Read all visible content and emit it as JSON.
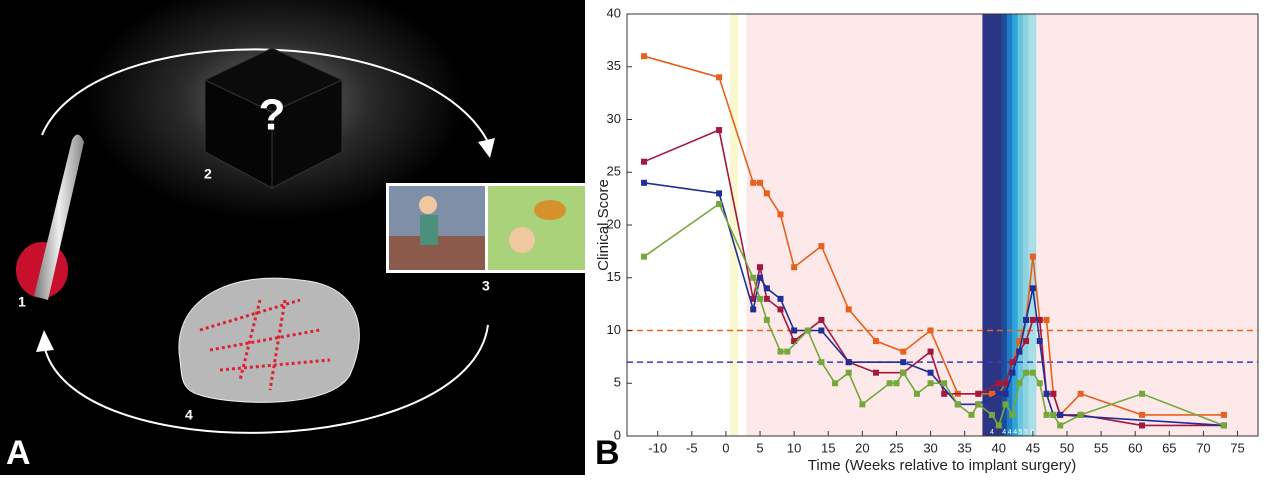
{
  "panel_a": {
    "label": "A",
    "steps": [
      "1",
      "2",
      "3",
      "4"
    ],
    "cube_mark": "?"
  },
  "chart_data": {
    "type": "line",
    "panel_label": "B",
    "xlabel": "Time (Weeks relative to implant surgery)",
    "ylabel": "Clinical Score",
    "xlim": [
      -14.5,
      78
    ],
    "ylim": [
      0,
      40
    ],
    "xticks": [
      -10,
      -5,
      0,
      5,
      10,
      15,
      20,
      25,
      30,
      35,
      40,
      45,
      50,
      55,
      60,
      65,
      70,
      75
    ],
    "yticks": [
      0,
      5,
      10,
      15,
      20,
      25,
      30,
      35,
      40
    ],
    "spans": [
      {
        "from": 0.6,
        "to": 1.8,
        "color": "#fbf7cf"
      },
      {
        "from": 3,
        "to": 78,
        "color": "#fde9ea"
      }
    ],
    "bands": [
      {
        "from": 37.6,
        "to": 40.4,
        "color": "#2b3584",
        "label": "4"
      },
      {
        "from": 40.4,
        "to": 41.2,
        "color": "#1c4d9c",
        "label": "4"
      },
      {
        "from": 41.2,
        "to": 42.0,
        "color": "#1f7cc6",
        "label": "4"
      },
      {
        "from": 42.0,
        "to": 42.8,
        "color": "#2ba5da",
        "label": "4"
      },
      {
        "from": 42.8,
        "to": 43.6,
        "color": "#68c5db",
        "label": "5"
      },
      {
        "from": 43.6,
        "to": 44.4,
        "color": "#8cd3df",
        "label": "5"
      },
      {
        "from": 44.4,
        "to": 45.5,
        "color": "#a8dfe6",
        "label": "6"
      }
    ],
    "hlines": [
      {
        "value": 10,
        "color": "#e8601c"
      },
      {
        "value": 7,
        "color": "#3a3ac0"
      }
    ],
    "series": [
      {
        "color": "#e8601c",
        "x": [
          -12,
          -1,
          4,
          5,
          6,
          8,
          10,
          14,
          18,
          22,
          26,
          30,
          34,
          37,
          39,
          40,
          41,
          42,
          43,
          44,
          45,
          46,
          47,
          48,
          49,
          52,
          61,
          73
        ],
        "values": [
          36,
          34,
          24,
          24,
          23,
          21,
          16,
          18,
          12,
          9,
          8,
          10,
          4,
          4,
          4,
          4,
          5,
          7,
          9,
          11,
          17,
          11,
          11,
          4,
          2,
          4,
          2,
          2
        ]
      },
      {
        "color": "#a3183d",
        "x": [
          -12,
          -1,
          4,
          5,
          6,
          8,
          10,
          14,
          18,
          22,
          26,
          30,
          32,
          37,
          40,
          41,
          42,
          43,
          44,
          45,
          46,
          47,
          48,
          49,
          52,
          61,
          73
        ],
        "values": [
          26,
          29,
          13,
          16,
          13,
          12,
          9,
          11,
          7,
          6,
          6,
          8,
          4,
          4,
          5,
          5,
          7,
          8,
          9,
          11,
          11,
          4,
          4,
          2,
          2,
          1,
          1
        ]
      },
      {
        "color": "#1f2f96",
        "x": [
          -12,
          -1,
          4,
          5,
          6,
          8,
          10,
          14,
          18,
          26,
          30,
          34,
          37,
          40,
          41,
          42,
          43,
          44,
          45,
          46,
          47,
          48,
          49,
          73
        ],
        "values": [
          24,
          23,
          12,
          15,
          14,
          13,
          10,
          10,
          7,
          7,
          6,
          3,
          3,
          4,
          4,
          6,
          8,
          11,
          14,
          9,
          4,
          2,
          2,
          1
        ]
      },
      {
        "color": "#74a83a",
        "x": [
          -12,
          -1,
          4,
          5,
          6,
          8,
          9,
          12,
          14,
          16,
          18,
          20,
          24,
          25,
          26,
          28,
          30,
          32,
          34,
          36,
          37,
          39,
          40,
          41,
          42,
          43,
          44,
          45,
          46,
          47,
          48,
          49,
          52,
          61,
          73
        ],
        "values": [
          17,
          22,
          15,
          13,
          11,
          8,
          8,
          10,
          7,
          5,
          6,
          3,
          5,
          5,
          6,
          4,
          5,
          5,
          3,
          2,
          3,
          2,
          1,
          3,
          2,
          5,
          6,
          6,
          5,
          2,
          2,
          1,
          2,
          4,
          1
        ]
      }
    ]
  }
}
